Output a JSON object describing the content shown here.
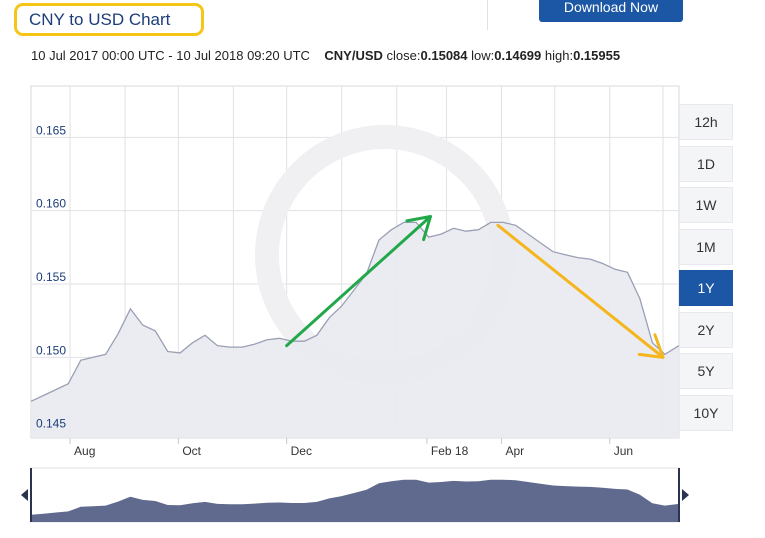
{
  "page": {
    "title": "CNY to USD Chart",
    "download_label": "Download Now",
    "info": {
      "range": "10 Jul 2017 00:00 UTC - 10 Jul 2018 09:20 UTC",
      "pair": "CNY/USD",
      "close_label": "close:",
      "close": "0.15084",
      "low_label": "low:",
      "low": "0.14699",
      "high_label": "high:",
      "high": "0.15955"
    },
    "ranges": [
      "12h",
      "1D",
      "1W",
      "1M",
      "1Y",
      "2Y",
      "5Y",
      "10Y"
    ],
    "active_range": "1Y"
  },
  "colors": {
    "area_fill": "#e9eaf0",
    "line": "#9aa0b4",
    "grid": "#e1e1e6",
    "navigator_fill": "#5f6a8e",
    "green_arrow": "#22a84a",
    "yellow_arrow": "#f5b51c",
    "accent": "#1c57a5"
  },
  "chart_data": {
    "type": "area",
    "y_ticks": [
      "0.165",
      "0.160",
      "0.155",
      "0.150",
      "0.145"
    ],
    "x_ticks": [
      "Aug",
      "Oct",
      "Dec",
      "Feb 18",
      "Apr",
      "Jun"
    ],
    "ylim": [
      0.1445,
      0.1685
    ],
    "x": [
      "2017-07-10",
      "2017-07-17",
      "2017-07-24",
      "2017-07-31",
      "2017-08-07",
      "2017-08-14",
      "2017-08-21",
      "2017-08-28",
      "2017-09-04",
      "2017-09-11",
      "2017-09-18",
      "2017-09-25",
      "2017-10-02",
      "2017-10-09",
      "2017-10-16",
      "2017-10-23",
      "2017-10-30",
      "2017-11-06",
      "2017-11-13",
      "2017-11-20",
      "2017-11-27",
      "2017-12-04",
      "2017-12-11",
      "2017-12-18",
      "2017-12-25",
      "2018-01-01",
      "2018-01-08",
      "2018-01-15",
      "2018-01-22",
      "2018-01-29",
      "2018-02-05",
      "2018-02-12",
      "2018-02-19",
      "2018-02-26",
      "2018-03-05",
      "2018-03-12",
      "2018-03-19",
      "2018-03-26",
      "2018-04-02",
      "2018-04-09",
      "2018-04-16",
      "2018-04-23",
      "2018-04-30",
      "2018-05-07",
      "2018-05-14",
      "2018-05-21",
      "2018-05-28",
      "2018-06-04",
      "2018-06-11",
      "2018-06-18",
      "2018-06-25",
      "2018-07-02",
      "2018-07-10"
    ],
    "values": [
      0.147,
      0.1474,
      0.1478,
      0.1482,
      0.1498,
      0.15,
      0.1502,
      0.1516,
      0.1533,
      0.1522,
      0.1518,
      0.1504,
      0.1503,
      0.151,
      0.1515,
      0.1508,
      0.1507,
      0.1507,
      0.1509,
      0.1512,
      0.1513,
      0.1511,
      0.1511,
      0.1515,
      0.1527,
      0.1535,
      0.1546,
      0.1557,
      0.158,
      0.1587,
      0.1592,
      0.1592,
      0.1582,
      0.1584,
      0.1588,
      0.1586,
      0.1587,
      0.1592,
      0.1592,
      0.159,
      0.1584,
      0.1578,
      0.1572,
      0.157,
      0.1568,
      0.1567,
      0.1564,
      0.156,
      0.1558,
      0.154,
      0.151,
      0.1502,
      0.1508
    ]
  },
  "annotations": [
    {
      "type": "arrow",
      "color": "green",
      "from": [
        "2017-12-01",
        0.1508
      ],
      "to": [
        "2018-02-20",
        0.1596
      ]
    },
    {
      "type": "arrow",
      "color": "yellow",
      "from": [
        "2018-03-30",
        0.159
      ],
      "to": [
        "2018-07-01",
        0.15
      ]
    }
  ]
}
